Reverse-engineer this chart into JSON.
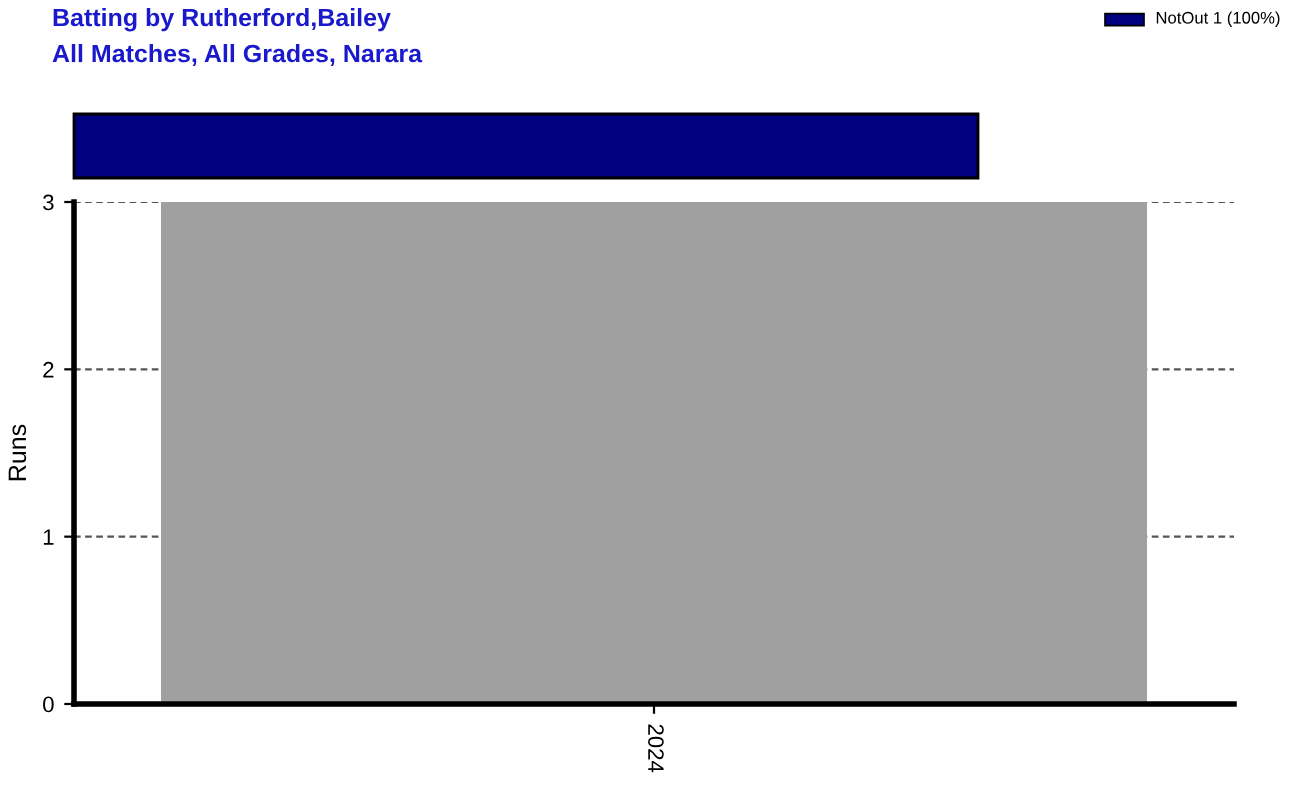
{
  "chart_data": {
    "type": "bar",
    "title": "Batting by Rutherford,Bailey",
    "subtitle": "All Matches, All Grades, Narara",
    "categories": [
      "2024"
    ],
    "values": [
      3
    ],
    "color": "#a0a0a0",
    "ylabel": "Runs",
    "ylim": [
      0,
      3
    ],
    "yticks": [
      0,
      1,
      2,
      3
    ],
    "grid": "y",
    "annotations": [
      "NotOut 1 (100%)"
    ]
  }
}
